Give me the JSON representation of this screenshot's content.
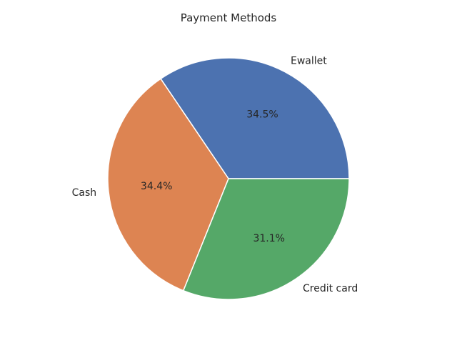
{
  "chart_data": {
    "type": "pie",
    "title": "Payment Methods",
    "categories": [
      "Ewallet",
      "Cash",
      "Credit card"
    ],
    "values": [
      34.5,
      34.4,
      31.1
    ],
    "percent_labels": [
      "34.5%",
      "34.4%",
      "31.1%"
    ],
    "colors": [
      "#4c72b0",
      "#dd8452",
      "#55a868"
    ],
    "start_angle_deg": 0,
    "direction": "counterclockwise"
  }
}
